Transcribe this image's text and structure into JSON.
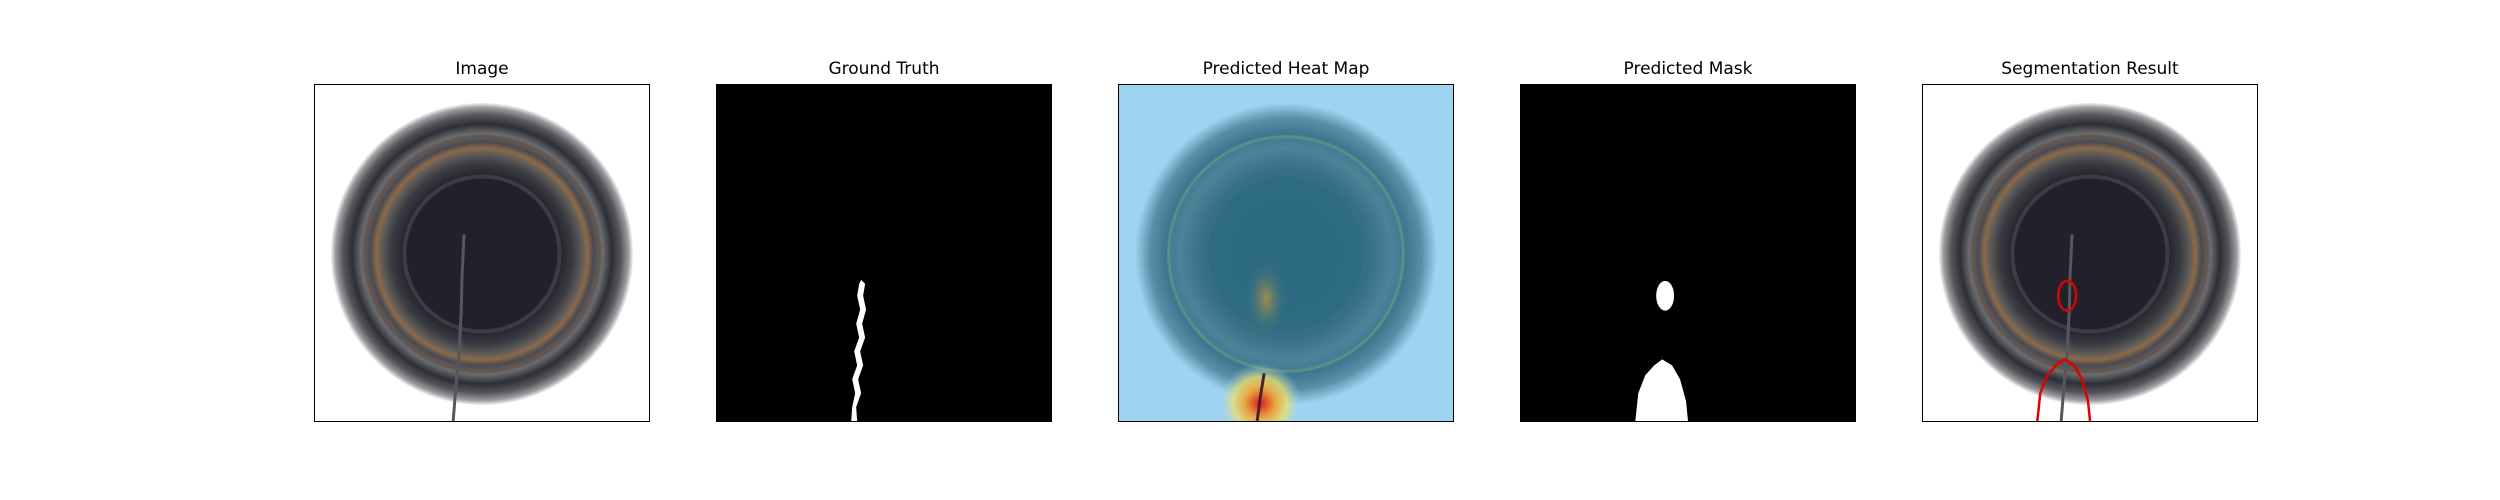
{
  "panels": [
    {
      "title": "Image"
    },
    {
      "title": "Ground Truth"
    },
    {
      "title": "Predicted Heat Map"
    },
    {
      "title": "Predicted Mask"
    },
    {
      "title": "Segmentation Result"
    }
  ],
  "colors": {
    "background": "#ffffff",
    "mask_background": "#000000",
    "mask_foreground": "#ffffff",
    "contour": "#e00000",
    "heatmap_base": "#9fd3f2",
    "heatmap_hot": "#d62018"
  }
}
